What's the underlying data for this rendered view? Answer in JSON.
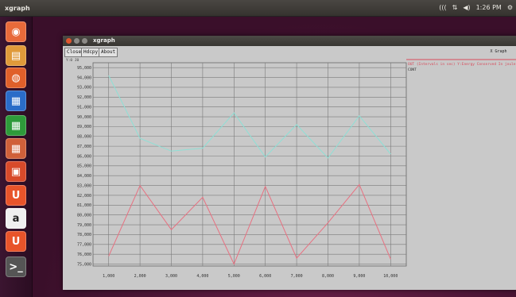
{
  "topbar": {
    "app_name": "xgraph",
    "tray": [
      "(((",
      "⇅",
      "◀)",
      "1:26 PM",
      "⚙"
    ]
  },
  "launcher": {
    "items": [
      {
        "name": "dash-icon",
        "glyph": "◉",
        "color": "#e86a3a"
      },
      {
        "name": "files-icon",
        "glyph": "▤",
        "color": "#e09a3a"
      },
      {
        "name": "firefox-icon",
        "glyph": "◍",
        "color": "#e0602a"
      },
      {
        "name": "writer-icon",
        "glyph": "▦",
        "color": "#2a6cc8"
      },
      {
        "name": "calc-icon",
        "glyph": "▦",
        "color": "#2e9a3a"
      },
      {
        "name": "impress-icon",
        "glyph": "▦",
        "color": "#d0603a"
      },
      {
        "name": "software-center-icon",
        "glyph": "▣",
        "color": "#d84a2a"
      },
      {
        "name": "ubuntu-one-icon",
        "glyph": "U",
        "color": "#e8542a"
      },
      {
        "name": "amazon-icon",
        "glyph": "a",
        "color": "#f0f0f0"
      },
      {
        "name": "ubuntu-one-2-icon",
        "glyph": "U",
        "color": "#e8542a"
      },
      {
        "name": "terminal-icon",
        "glyph": ">_",
        "color": "#555555"
      }
    ]
  },
  "window": {
    "title": "xgraph",
    "buttons": {
      "close": "Close",
      "hdcpy": "Hdcpy",
      "about": "About"
    },
    "plot_title": "X Graph",
    "scale_readout": "Y:0 J0",
    "legend": [
      {
        "label": "OUT (Intervals in sec) Y:Energy Conserved In joule",
        "color": "#d94a5a"
      },
      {
        "label": "CONT",
        "color": "#2e2e2e"
      }
    ],
    "x_axis_unit": "X"
  },
  "chart_data": {
    "type": "line",
    "x": [
      1000,
      2000,
      3000,
      4000,
      5000,
      6000,
      7000,
      8000,
      9000,
      10000
    ],
    "x_tick_labels": [
      "1,000",
      "2,000",
      "3,000",
      "4,000",
      "5,000",
      "6,000",
      "7,000",
      "8,000",
      "9,000",
      "10,000"
    ],
    "y_tick_values": [
      75000,
      76000,
      77000,
      78000,
      79000,
      80000,
      81000,
      82000,
      83000,
      84000,
      85000,
      86000,
      87000,
      88000,
      89000,
      90000,
      91000,
      92000,
      93000,
      94000,
      95000
    ],
    "y_tick_labels": [
      "75,000",
      "76,000",
      "77,000",
      "78,000",
      "79,000",
      "80,000",
      "81,000",
      "82,000",
      "83,000",
      "84,000",
      "85,000",
      "86,000",
      "87,000",
      "88,000",
      "89,000",
      "90,000",
      "91,000",
      "92,000",
      "93,000",
      "94,000",
      "95,000"
    ],
    "ylim": [
      74800,
      95500
    ],
    "xlim": [
      500,
      10500
    ],
    "grid": true,
    "series": [
      {
        "name": "OUT (Intervals in sec) Y:Energy Conserved In joule",
        "color": "#e87080",
        "values": [
          75800,
          83000,
          78500,
          81800,
          75000,
          82900,
          75600,
          79200,
          83100,
          75500
        ]
      },
      {
        "name": "CONT",
        "color": "#8ee0d6",
        "values": [
          94200,
          87800,
          86500,
          86800,
          90400,
          85900,
          89200,
          85800,
          90100,
          86200
        ]
      }
    ]
  }
}
